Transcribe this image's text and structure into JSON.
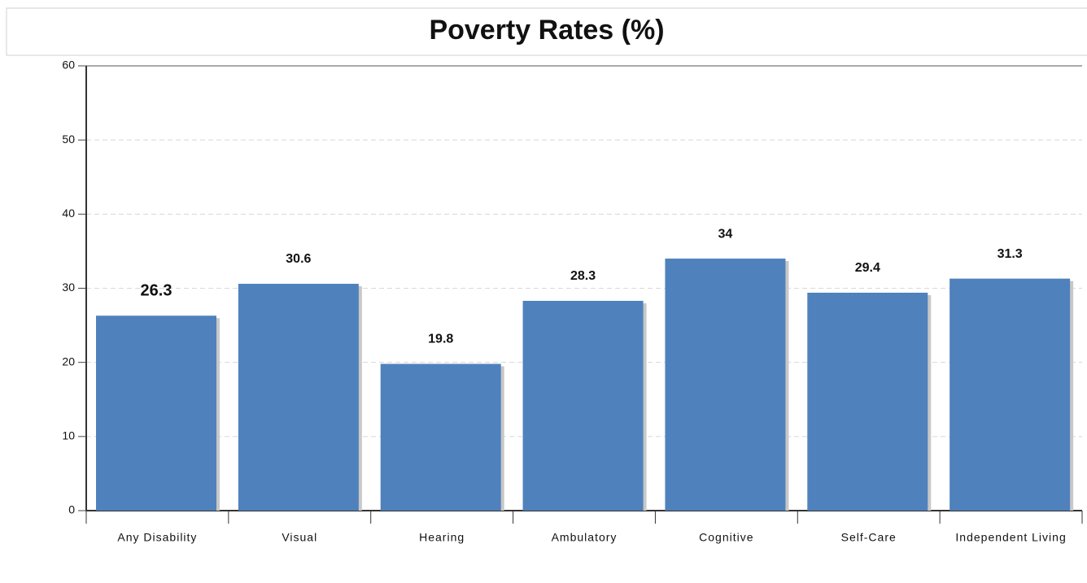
{
  "chart_data": {
    "type": "bar",
    "title": "Poverty Rates (%)",
    "categories": [
      "Any Disability",
      "Visual",
      "Hearing",
      "Ambulatory",
      "Cognitive",
      "Self-Care",
      "Independent Living"
    ],
    "values": [
      26.3,
      30.6,
      19.8,
      28.3,
      34,
      29.4,
      31.3
    ],
    "color": "#4f81bd",
    "ylim": [
      0,
      60
    ],
    "yticks": [
      0,
      10,
      20,
      30,
      40,
      50,
      60
    ],
    "grid": true
  }
}
